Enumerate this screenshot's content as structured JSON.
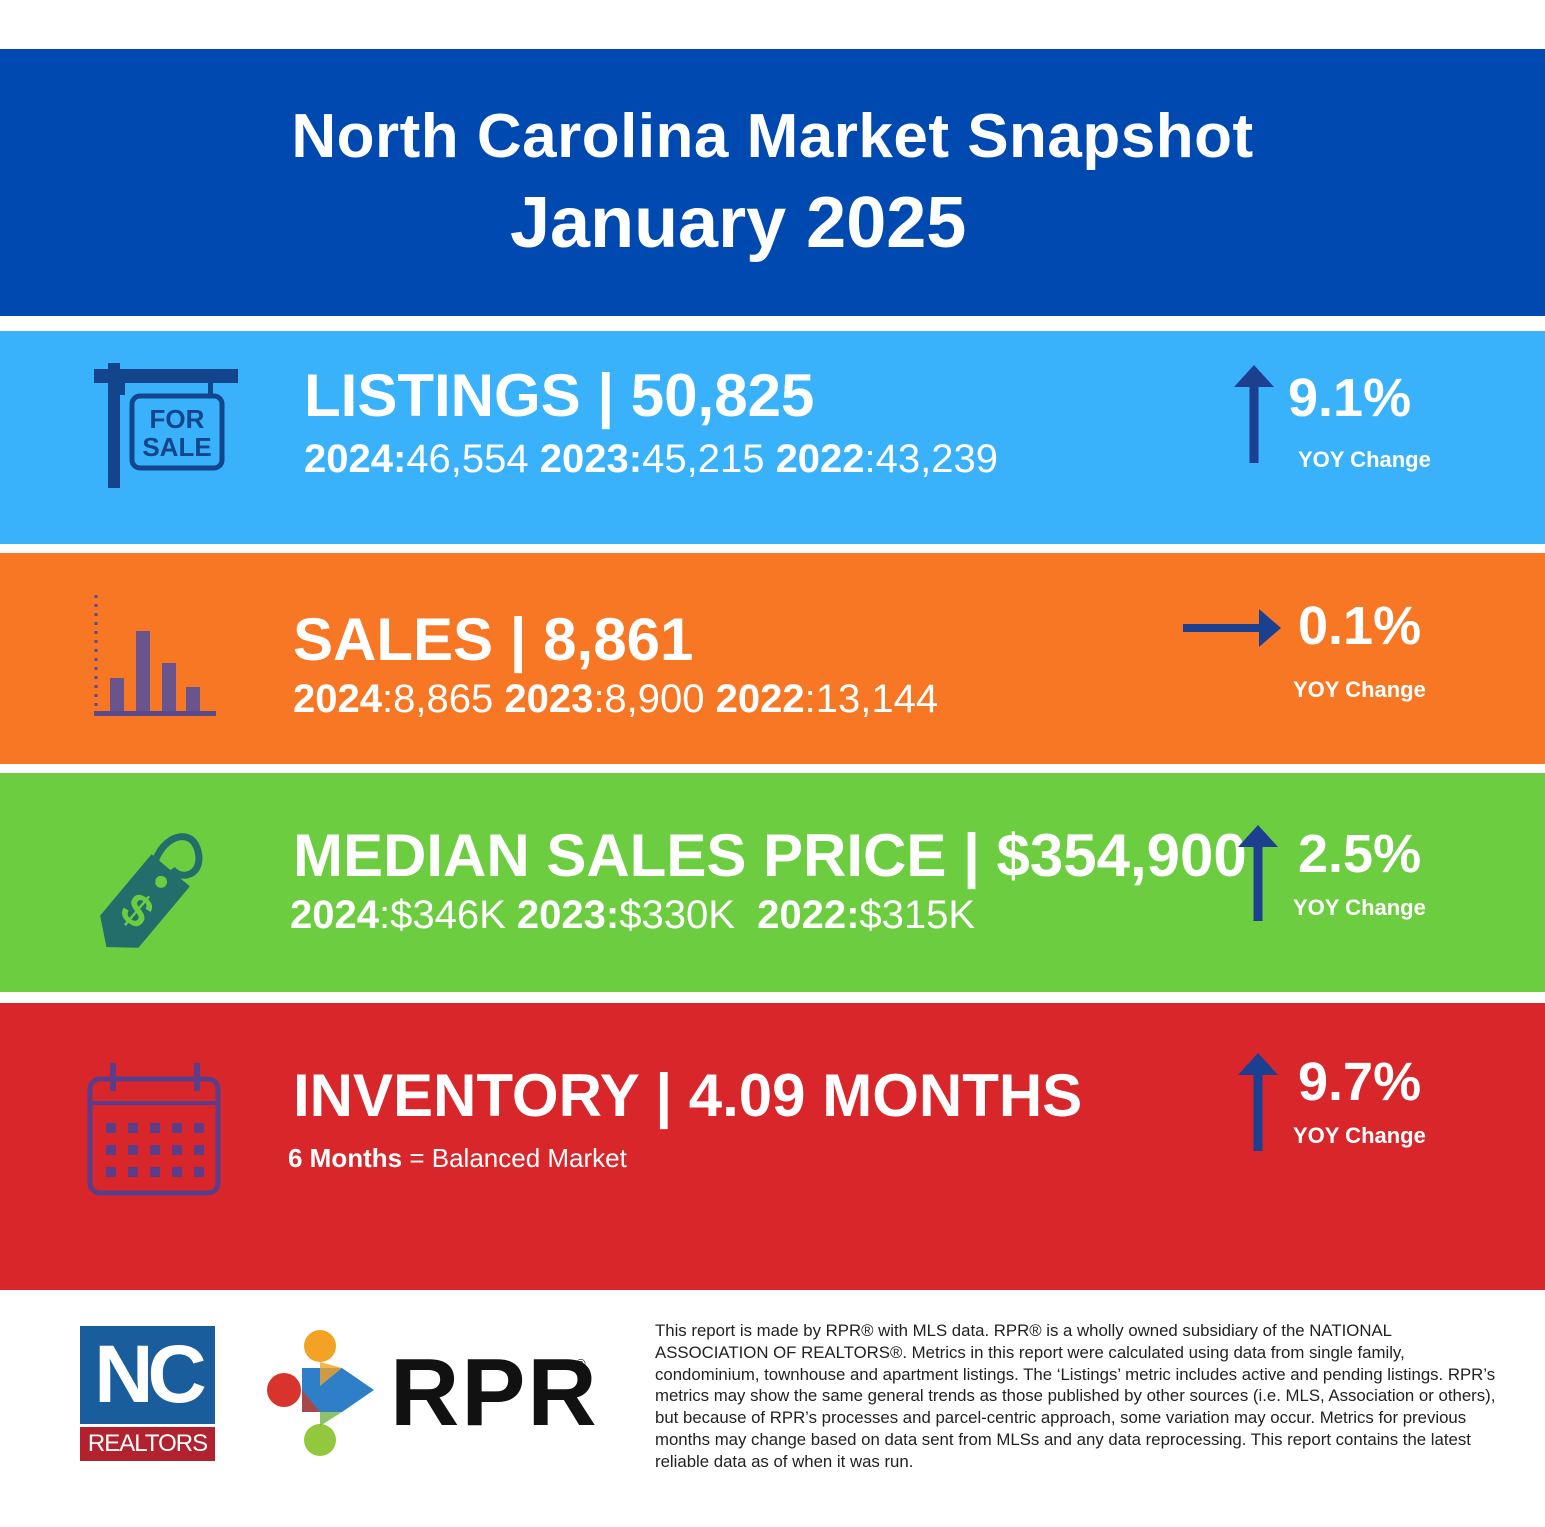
{
  "header": {
    "title": "North Carolina Market Snapshot",
    "subtitle": "January 2025"
  },
  "listings": {
    "title": "LISTINGS | 50,825",
    "history": [
      {
        "year": "2024:",
        "value": "46,554"
      },
      {
        "year": "2023:",
        "value": "45,215"
      },
      {
        "year": "2022",
        "value": ":43,239"
      }
    ],
    "change": "9.1%",
    "change_label": "YOY Change",
    "icon": "for-sale-sign-icon",
    "sign_text": [
      "FOR",
      "SALE"
    ],
    "color": "#39b2fb"
  },
  "sales": {
    "title": "SALES | 8,861",
    "history": [
      {
        "year": "2024",
        "value": ":8,865"
      },
      {
        "year": "2023",
        "value": ":8,900"
      },
      {
        "year": "2022",
        "value": ":13,144"
      }
    ],
    "change": "0.1%",
    "change_label": "YOY Change",
    "icon": "bar-chart-icon",
    "color": "#f87725"
  },
  "median_price": {
    "title": "MEDIAN SALES PRICE | $354,900",
    "history": [
      {
        "year": "2024",
        "value": ":$346K"
      },
      {
        "year": "2023:",
        "value": "$330K"
      },
      {
        "year": "2022:",
        "value": "$315K"
      }
    ],
    "change": "2.5%",
    "change_label": "YOY Change",
    "icon": "price-tag-icon",
    "color": "#6dcd40"
  },
  "inventory": {
    "title": "INVENTORY | 4.09 MONTHS",
    "note_bold": "6 Months",
    "note_rest": " = Balanced Market",
    "change": "9.7%",
    "change_label": "YOY Change",
    "icon": "calendar-icon",
    "color": "#d9262b"
  },
  "footer": {
    "nc_logo_top": "NC",
    "nc_logo_bottom": "REALTORS",
    "rpr_logo": "RPR",
    "rpr_reg": "®",
    "disclaimer": "This report is made by RPR® with MLS data. RPR® is a wholly owned subsidiary of the NATIONAL ASSOCIATION OF REALTORS®. Metrics in this report were calculated using data from single family, condominium, townhouse and apartment listings. The ‘Listings’ metric includes active and pending listings. RPR’s metrics may show the same general trends as those published by other sources (i.e. MLS, Association or others), but because of RPR’s processes and parcel-centric approach, some variation may occur. Metrics for previous months may change based on data sent from MLSs and any data reprocessing. This report contains the latest reliable data as of when it was run."
  }
}
